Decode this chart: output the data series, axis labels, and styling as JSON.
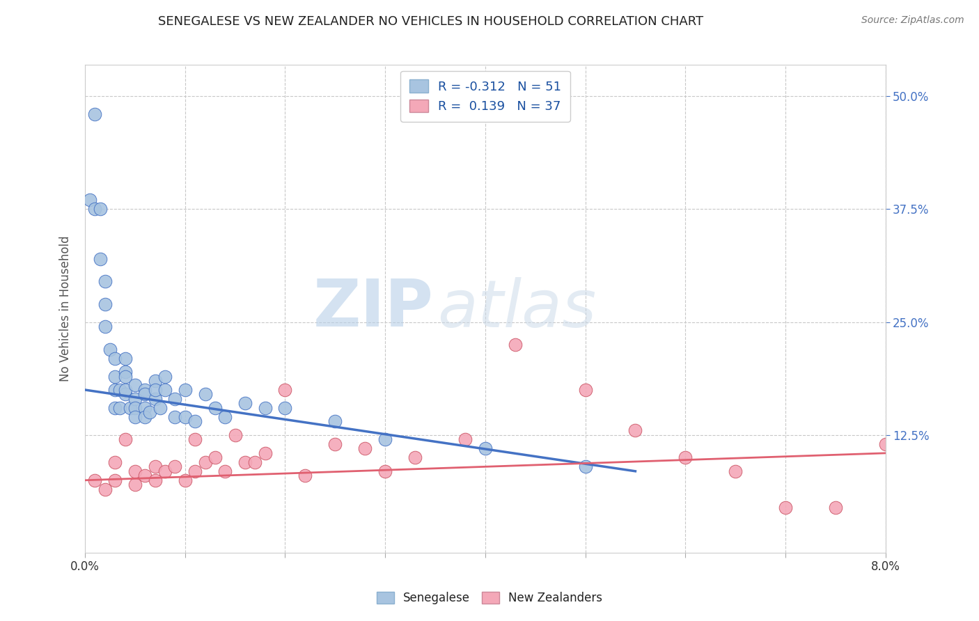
{
  "title": "SENEGALESE VS NEW ZEALANDER NO VEHICLES IN HOUSEHOLD CORRELATION CHART",
  "source": "Source: ZipAtlas.com",
  "ylabel": "No Vehicles in Household",
  "right_yticks": [
    "50.0%",
    "37.5%",
    "25.0%",
    "12.5%"
  ],
  "right_ytick_vals": [
    0.5,
    0.375,
    0.25,
    0.125
  ],
  "xlim": [
    0.0,
    0.08
  ],
  "ylim": [
    -0.005,
    0.535
  ],
  "color_senegalese": "#a8c4e0",
  "color_nz": "#f4a8b8",
  "line_color_senegalese": "#4472c4",
  "line_color_nz": "#e06070",
  "watermark_zip": "ZIP",
  "watermark_atlas": "atlas",
  "senegalese_x": [
    0.0005,
    0.001,
    0.001,
    0.0015,
    0.0015,
    0.002,
    0.002,
    0.002,
    0.0025,
    0.003,
    0.003,
    0.003,
    0.003,
    0.0035,
    0.0035,
    0.004,
    0.004,
    0.004,
    0.004,
    0.004,
    0.0045,
    0.005,
    0.005,
    0.005,
    0.005,
    0.006,
    0.006,
    0.006,
    0.006,
    0.0065,
    0.007,
    0.007,
    0.007,
    0.0075,
    0.008,
    0.008,
    0.009,
    0.009,
    0.01,
    0.01,
    0.011,
    0.012,
    0.013,
    0.014,
    0.016,
    0.018,
    0.02,
    0.025,
    0.03,
    0.04,
    0.05
  ],
  "senegalese_y": [
    0.385,
    0.375,
    0.48,
    0.375,
    0.32,
    0.295,
    0.27,
    0.245,
    0.22,
    0.21,
    0.19,
    0.175,
    0.155,
    0.175,
    0.155,
    0.195,
    0.17,
    0.21,
    0.19,
    0.175,
    0.155,
    0.18,
    0.165,
    0.155,
    0.145,
    0.175,
    0.155,
    0.145,
    0.17,
    0.15,
    0.185,
    0.165,
    0.175,
    0.155,
    0.19,
    0.175,
    0.165,
    0.145,
    0.175,
    0.145,
    0.14,
    0.17,
    0.155,
    0.145,
    0.16,
    0.155,
    0.155,
    0.14,
    0.12,
    0.11,
    0.09
  ],
  "nz_x": [
    0.001,
    0.002,
    0.003,
    0.003,
    0.004,
    0.005,
    0.005,
    0.006,
    0.007,
    0.007,
    0.008,
    0.009,
    0.01,
    0.011,
    0.011,
    0.012,
    0.013,
    0.014,
    0.015,
    0.016,
    0.017,
    0.018,
    0.02,
    0.022,
    0.025,
    0.028,
    0.03,
    0.033,
    0.038,
    0.043,
    0.05,
    0.055,
    0.06,
    0.065,
    0.07,
    0.075,
    0.08
  ],
  "nz_y": [
    0.075,
    0.065,
    0.095,
    0.075,
    0.12,
    0.085,
    0.07,
    0.08,
    0.09,
    0.075,
    0.085,
    0.09,
    0.075,
    0.12,
    0.085,
    0.095,
    0.1,
    0.085,
    0.125,
    0.095,
    0.095,
    0.105,
    0.175,
    0.08,
    0.115,
    0.11,
    0.085,
    0.1,
    0.12,
    0.225,
    0.175,
    0.13,
    0.1,
    0.085,
    0.045,
    0.045,
    0.115
  ],
  "sen_line_x0": 0.0,
  "sen_line_y0": 0.175,
  "sen_line_x1": 0.055,
  "sen_line_y1": 0.085,
  "nz_line_x0": 0.0,
  "nz_line_y0": 0.075,
  "nz_line_x1": 0.08,
  "nz_line_y1": 0.105
}
